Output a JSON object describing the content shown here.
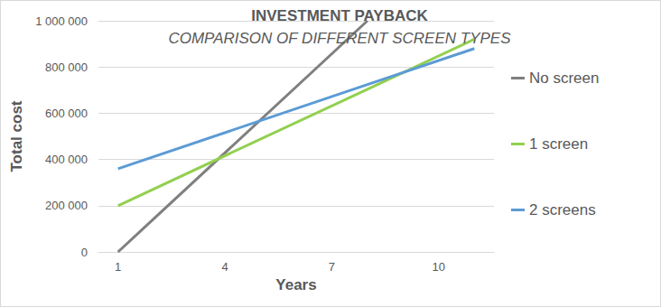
{
  "chart_data": {
    "type": "line",
    "title": "INVESTMENT PAYBACK",
    "subtitle": "COMPARISON OF DIFFERENT SCREEN TYPES",
    "x_label": "Years",
    "y_label": "Total cost",
    "x": [
      1,
      8,
      11
    ],
    "series": [
      {
        "name": "No screen",
        "color": "#7f7f7f",
        "values": [
          0,
          1000000,
          null
        ]
      },
      {
        "name": "1 screen",
        "color": "#92d050",
        "values": [
          200000,
          704000,
          920000
        ]
      },
      {
        "name": "2 screens",
        "color": "#5b9bd5",
        "values": [
          360000,
          724000,
          880000
        ]
      }
    ],
    "xlim": [
      0.45,
      11.55
    ],
    "xticks": [
      1,
      4,
      7,
      10
    ],
    "ylim": [
      0,
      1000000
    ],
    "yticks": [
      0,
      {
        "value": 200000,
        "label": "200 000"
      },
      {
        "value": 400000,
        "label": "400 000"
      },
      {
        "value": 600000,
        "label": "600 000"
      },
      {
        "value": 800000,
        "label": "800 000"
      },
      {
        "value": 1000000,
        "label": "1 000 000"
      }
    ],
    "grid": true,
    "legend": "right"
  }
}
